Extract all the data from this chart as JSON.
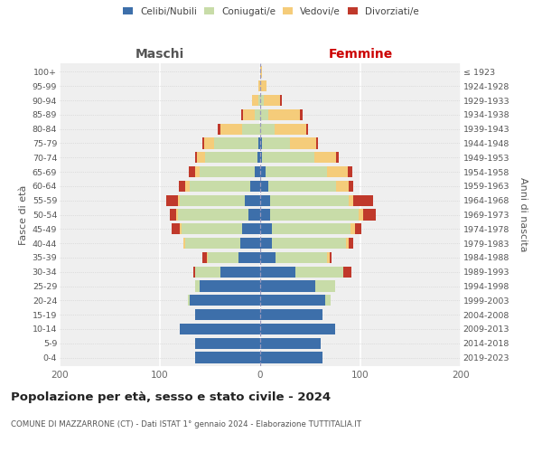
{
  "age_groups": [
    "0-4",
    "5-9",
    "10-14",
    "15-19",
    "20-24",
    "25-29",
    "30-34",
    "35-39",
    "40-44",
    "45-49",
    "50-54",
    "55-59",
    "60-64",
    "65-69",
    "70-74",
    "75-79",
    "80-84",
    "85-89",
    "90-94",
    "95-99",
    "100+"
  ],
  "birth_years": [
    "2019-2023",
    "2014-2018",
    "2009-2013",
    "2004-2008",
    "1999-2003",
    "1994-1998",
    "1989-1993",
    "1984-1988",
    "1979-1983",
    "1974-1978",
    "1969-1973",
    "1964-1968",
    "1959-1963",
    "1954-1958",
    "1949-1953",
    "1944-1948",
    "1939-1943",
    "1934-1938",
    "1929-1933",
    "1924-1928",
    "≤ 1923"
  ],
  "males": {
    "celibe": [
      65,
      65,
      80,
      65,
      70,
      60,
      40,
      22,
      20,
      18,
      12,
      15,
      10,
      5,
      3,
      2,
      0,
      0,
      0,
      0,
      0
    ],
    "coniugato": [
      0,
      0,
      0,
      0,
      2,
      5,
      25,
      30,
      55,
      60,
      70,
      65,
      60,
      55,
      52,
      44,
      18,
      5,
      2,
      0,
      0
    ],
    "vedovo": [
      0,
      0,
      0,
      0,
      0,
      0,
      0,
      1,
      2,
      2,
      2,
      2,
      5,
      5,
      8,
      10,
      22,
      12,
      6,
      2,
      0
    ],
    "divorziato": [
      0,
      0,
      0,
      0,
      0,
      0,
      2,
      5,
      0,
      8,
      6,
      12,
      6,
      6,
      2,
      2,
      2,
      2,
      0,
      0,
      0
    ]
  },
  "females": {
    "nubile": [
      62,
      60,
      75,
      62,
      65,
      55,
      35,
      15,
      12,
      12,
      10,
      10,
      8,
      5,
      2,
      2,
      0,
      0,
      0,
      0,
      0
    ],
    "coniugata": [
      0,
      0,
      0,
      0,
      5,
      20,
      48,
      52,
      74,
      78,
      88,
      78,
      68,
      62,
      52,
      28,
      14,
      8,
      4,
      0,
      0
    ],
    "vedova": [
      0,
      0,
      0,
      0,
      0,
      0,
      0,
      2,
      2,
      5,
      5,
      5,
      12,
      20,
      22,
      26,
      32,
      32,
      16,
      6,
      2
    ],
    "divorziata": [
      0,
      0,
      0,
      0,
      0,
      0,
      8,
      2,
      5,
      6,
      12,
      20,
      5,
      5,
      2,
      2,
      2,
      2,
      2,
      0,
      0
    ]
  },
  "colors": {
    "celibe": "#3d6faa",
    "coniugato": "#c8dca8",
    "vedovo": "#f5cc7a",
    "divorziato": "#c0392b"
  },
  "xlim": 200,
  "title": "Popolazione per età, sesso e stato civile - 2024",
  "subtitle": "COMUNE DI MAZZARRONE (CT) - Dati ISTAT 1° gennaio 2024 - Elaborazione TUTTITALIA.IT",
  "ylabel_left": "Fasce di età",
  "ylabel_right": "Anni di nascita",
  "xlabel_left": "Maschi",
  "xlabel_right": "Femmine",
  "bg_color": "#efefef",
  "grid_color": "#ffffff"
}
